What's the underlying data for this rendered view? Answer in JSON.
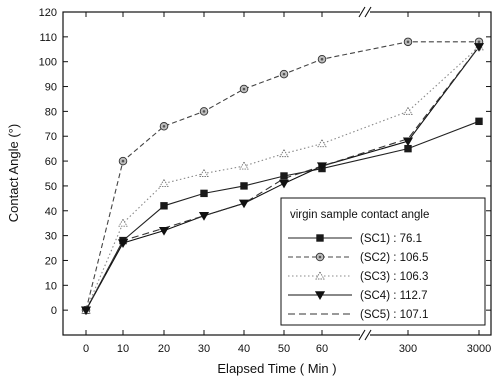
{
  "chart_data": {
    "type": "line",
    "xlabel": "Elapsed  Time ( Min )",
    "ylabel": "Contact  Angle (°)",
    "categories": [
      "0",
      "10",
      "20",
      "30",
      "40",
      "50",
      "60",
      "300",
      "3000"
    ],
    "ylim": [
      -10,
      120
    ],
    "yticks": [
      0,
      10,
      20,
      30,
      40,
      50,
      60,
      70,
      80,
      90,
      100,
      110,
      120
    ],
    "axis_break_between": [
      "60",
      "300"
    ],
    "grid": false,
    "legend": {
      "title": "virgin sample contact angle",
      "placement": "bottom-right"
    },
    "series": [
      {
        "name": "(SC1) : 76.1",
        "marker": "square",
        "line": "solid",
        "color": "#222222",
        "values": [
          0,
          28,
          42,
          47,
          50,
          54,
          57,
          65,
          76
        ]
      },
      {
        "name": "(SC2) : 106.5",
        "marker": "circle-dotted",
        "line": "dashed",
        "color": "#444444",
        "values": [
          0,
          60,
          74,
          80,
          89,
          95,
          101,
          108,
          108
        ]
      },
      {
        "name": "(SC3) : 106.3",
        "marker": "triangle-open",
        "line": "dotted",
        "color": "#888888",
        "values": [
          0,
          35,
          51,
          55,
          58,
          63,
          67,
          80,
          106
        ]
      },
      {
        "name": "(SC4) : 112.7",
        "marker": "triangle-down-filled",
        "line": "solid",
        "color": "#111111",
        "values": [
          0,
          27,
          32,
          38,
          43,
          51,
          58,
          68,
          106
        ]
      },
      {
        "name": "(SC5) : 107.1",
        "marker": "none",
        "line": "long-dash",
        "color": "#333333",
        "values": [
          0,
          28,
          33,
          38,
          43,
          53,
          58,
          69,
          106
        ]
      }
    ]
  }
}
